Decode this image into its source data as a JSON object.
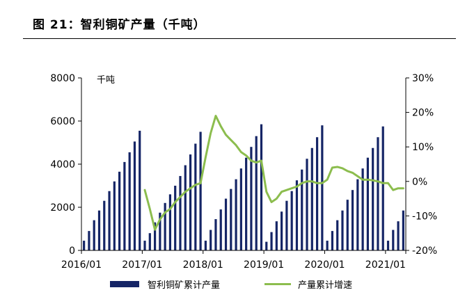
{
  "figure": {
    "title": "图 21：智利铜矿产量（千吨）"
  },
  "colors": {
    "bar": "#152566",
    "line": "#8cbd4e",
    "axis": "#000000"
  },
  "legend": {
    "bar_label": "智利铜矿累计产量",
    "line_label": "产量累计增速"
  },
  "chart_data": {
    "type": "bar",
    "unit_label": "千吨",
    "x_tick_labels": [
      "2016/01",
      "2017/01",
      "2018/01",
      "2019/01",
      "2020/01",
      "2021/01"
    ],
    "y_left_ticks": [
      "0",
      "2000",
      "4000",
      "6000",
      "8000"
    ],
    "y_right_ticks": [
      "-20%",
      "-10%",
      "0%",
      "10%",
      "20%",
      "30%"
    ],
    "ylim_left": [
      0,
      8000
    ],
    "ylim_right": [
      -20,
      30
    ],
    "categories": [
      "2016/01",
      "2016/02",
      "2016/03",
      "2016/04",
      "2016/05",
      "2016/06",
      "2016/07",
      "2016/08",
      "2016/09",
      "2016/10",
      "2016/11",
      "2016/12",
      "2017/01",
      "2017/02",
      "2017/03",
      "2017/04",
      "2017/05",
      "2017/06",
      "2017/07",
      "2017/08",
      "2017/09",
      "2017/10",
      "2017/11",
      "2017/12",
      "2018/01",
      "2018/02",
      "2018/03",
      "2018/04",
      "2018/05",
      "2018/06",
      "2018/07",
      "2018/08",
      "2018/09",
      "2018/10",
      "2018/11",
      "2018/12",
      "2019/01",
      "2019/02",
      "2019/03",
      "2019/04",
      "2019/05",
      "2019/06",
      "2019/07",
      "2019/08",
      "2019/09",
      "2019/10",
      "2019/11",
      "2019/12",
      "2020/01",
      "2020/02",
      "2020/03",
      "2020/04",
      "2020/05",
      "2020/06",
      "2020/07",
      "2020/08",
      "2020/09",
      "2020/10",
      "2020/11",
      "2020/12",
      "2021/01",
      "2021/02",
      "2021/03",
      "2021/04"
    ],
    "series": [
      {
        "name": "智利铜矿累计产量",
        "type": "bar",
        "axis": "left",
        "values": [
          450,
          900,
          1400,
          1850,
          2300,
          2750,
          3200,
          3650,
          4100,
          4550,
          5050,
          5550,
          450,
          800,
          1300,
          1750,
          2200,
          2600,
          3000,
          3450,
          3950,
          4450,
          4950,
          5500,
          450,
          950,
          1450,
          1900,
          2400,
          2850,
          3300,
          3800,
          4300,
          4800,
          5300,
          5850,
          400,
          850,
          1350,
          1800,
          2300,
          2750,
          3250,
          3750,
          4250,
          4750,
          5250,
          5800,
          450,
          900,
          1400,
          1850,
          2350,
          2800,
          3300,
          3800,
          4300,
          4750,
          5250,
          5750,
          450,
          950,
          1350,
          1850
        ]
      },
      {
        "name": "产量累计增速",
        "type": "line",
        "axis": "right",
        "values": [
          null,
          null,
          null,
          null,
          null,
          null,
          null,
          null,
          null,
          null,
          null,
          null,
          -2.5,
          -8,
          -14,
          -11,
          -9,
          -8,
          -6,
          -4.5,
          -3,
          -2,
          -1,
          -0.5,
          7,
          14,
          19,
          16,
          13.5,
          12,
          10.5,
          8.5,
          7.5,
          6,
          5.5,
          6,
          -3,
          -6,
          -5,
          -3,
          -2.5,
          -2,
          -1.5,
          -0.5,
          0,
          0,
          -0.5,
          -0.5,
          0.5,
          4,
          4.2,
          3.8,
          3,
          2.5,
          1.5,
          0.5,
          0.5,
          0.3,
          0,
          -0.5,
          -0.5,
          -2.5,
          -2,
          -2
        ]
      }
    ]
  }
}
